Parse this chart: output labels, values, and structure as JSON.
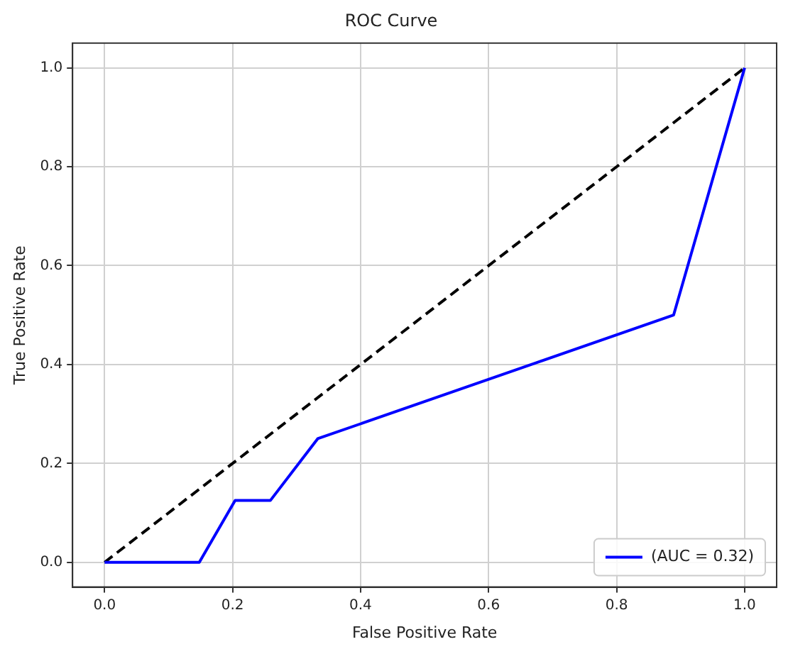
{
  "chart_data": {
    "type": "line",
    "title": "ROC Curve",
    "xlabel": "False Positive Rate",
    "ylabel": "True Positive Rate",
    "series": [
      {
        "name": "(AUC = 0.32)",
        "color": "#0000ff",
        "x": [
          0,
          0.148,
          0.204,
          0.259,
          0.333,
          0.889,
          1
        ],
        "values": [
          0,
          0,
          0.125,
          0.125,
          0.25,
          0.5,
          1
        ]
      },
      {
        "color": "#000000",
        "line_style": "dashed",
        "x": [
          0,
          1
        ],
        "values": [
          0,
          1
        ]
      }
    ],
    "xlim": [
      -0.05,
      1.05
    ],
    "ylim": [
      -0.05,
      1.05
    ],
    "xticks": [
      {
        "value": 0,
        "label": "0.0"
      },
      0.2,
      0.4,
      0.6,
      0.8,
      {
        "value": 1,
        "label": "1.0"
      }
    ],
    "yticks": [
      {
        "value": 0,
        "label": "0.0"
      },
      0.2,
      0.4,
      0.6,
      0.8,
      {
        "value": 1,
        "label": "1.0"
      }
    ],
    "grid": true,
    "legend": "bottom right",
    "marker": "none"
  }
}
